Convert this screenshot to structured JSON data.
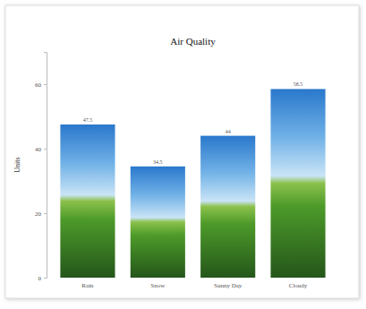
{
  "chart_data": {
    "type": "bar",
    "title": "Air Quality",
    "y_label": "Units",
    "categories": [
      "Rain",
      "Snow",
      "Sunny Day",
      "Cloudy"
    ],
    "values": [
      47.5,
      34.5,
      44,
      58.5
    ],
    "color": "#2a78cc",
    "ylim": [
      0,
      70
    ],
    "yticks": [
      0,
      20,
      40,
      60
    ],
    "grid": false,
    "data_labels": true
  }
}
